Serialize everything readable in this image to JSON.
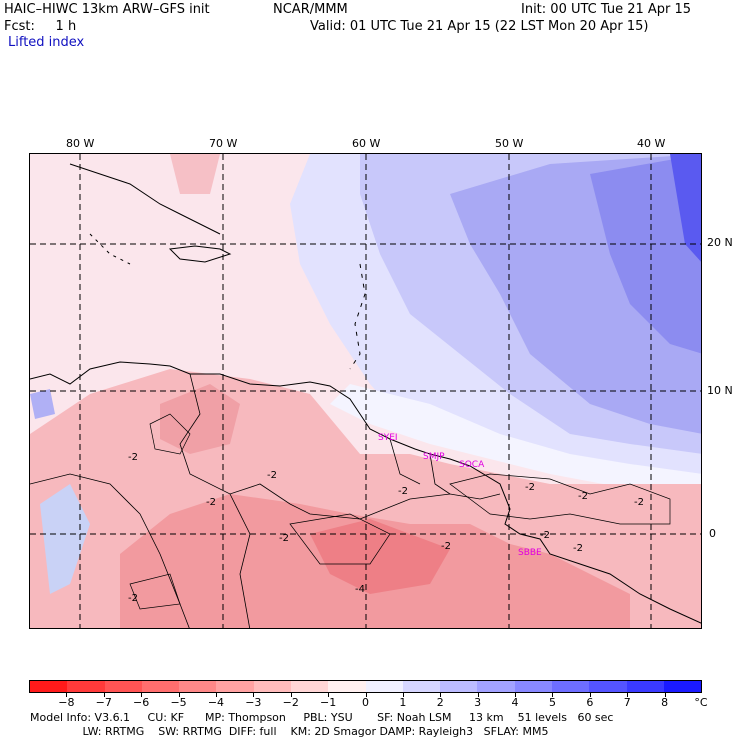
{
  "header": {
    "model_title": "HAIC–HIWC 13km ARW–GFS init",
    "center": "NCAR/MMM",
    "init": "Init: 00 UTC Tue 21 Apr 15",
    "fcst": "Fcst:     1 h",
    "valid": "Valid: 01 UTC Tue 21 Apr 15 (22 LST Mon 20 Apr 15)",
    "field": "Lifted index"
  },
  "map": {
    "lon_labels": [
      "80 W",
      "70 W",
      "60 W",
      "50 W",
      "40 W"
    ],
    "lat_labels": [
      "20 N",
      "10 N",
      "0"
    ],
    "stations": [
      "SYEI",
      "SMJP",
      "SOCA",
      "SBBE"
    ],
    "contour_labels": [
      "-2",
      "-2",
      "-2",
      "-2",
      "-2",
      "-2",
      "-2",
      "-2",
      "-2",
      "-2",
      "-4",
      "-2",
      "-2"
    ]
  },
  "colorbar": {
    "colors": [
      "#ff1a1a",
      "#ff3a3a",
      "#ff5454",
      "#ff6e6e",
      "#fe8888",
      "#ffa2a2",
      "#ffbcbc",
      "#ffd6d6",
      "#fff0f0",
      "#f0f0ff",
      "#d6d6ff",
      "#bcbcff",
      "#a2a2ff",
      "#8888ff",
      "#6e6eff",
      "#5454ff",
      "#3a3aff",
      "#1a1aff"
    ],
    "tick_labels": [
      "−8",
      "−7",
      "−6",
      "−5",
      "−4",
      "−3",
      "−2",
      "−1",
      "0",
      "1",
      "2",
      "3",
      "4",
      "5",
      "6",
      "7",
      "8"
    ],
    "unit": "°C"
  },
  "footer": {
    "line1": "Model Info: V3.6.1     CU: KF      MP: Thompson     PBL: YSU       SF: Noah LSM     13 km    51 levels   60 sec",
    "line2": "               LW: RRTMG    SW: RRTMG  DIFF: full    KM: 2D Smagor DAMP: Rayleigh3   SFLAY: MM5"
  }
}
